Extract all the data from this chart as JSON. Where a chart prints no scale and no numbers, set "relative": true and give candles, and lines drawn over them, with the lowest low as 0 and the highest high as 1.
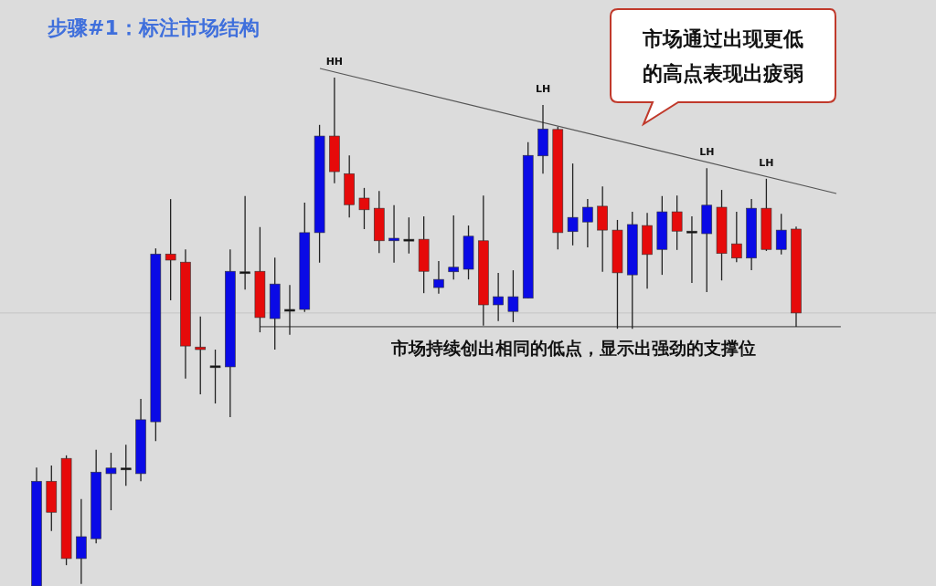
{
  "chart_data": {
    "type": "candlestick",
    "title": "步骤#1：标注市场结构",
    "relative": true,
    "categories": [
      null,
      null,
      null,
      null,
      null,
      null,
      null,
      null,
      null,
      null,
      null,
      null,
      null,
      null,
      null,
      null,
      null,
      null,
      null,
      null,
      null,
      null,
      null,
      null,
      null,
      null,
      null,
      null,
      null,
      null,
      null,
      null,
      null,
      null,
      null,
      null,
      null,
      null,
      null,
      null,
      null,
      null,
      null,
      null,
      null,
      null,
      null,
      null,
      null,
      null,
      null,
      null
    ],
    "ohlc": [
      [
        0,
        0.233,
        0,
        0.206
      ],
      [
        0.206,
        0.237,
        0.108,
        0.145
      ],
      [
        0.251,
        0.257,
        0.041,
        0.054
      ],
      [
        0.054,
        0.171,
        0.004,
        0.097
      ],
      [
        0.093,
        0.268,
        0.084,
        0.224
      ],
      [
        0.221,
        0.262,
        0.149,
        0.232
      ],
      [
        0.232,
        0.278,
        0.197,
        0.232
      ],
      [
        0.221,
        0.368,
        0.206,
        0.327
      ],
      [
        0.323,
        0.664,
        0.285,
        0.653
      ],
      [
        0.653,
        0.761,
        0.562,
        0.641
      ],
      [
        0.637,
        0.662,
        0.408,
        0.472
      ],
      [
        0.47,
        0.53,
        0.377,
        0.465
      ],
      [
        0.433,
        0.465,
        0.359,
        0.433
      ],
      [
        0.431,
        0.662,
        0.332,
        0.619
      ],
      [
        0.618,
        0.767,
        0.583,
        0.618
      ],
      [
        0.619,
        0.706,
        0.499,
        0.528
      ],
      [
        0.526,
        0.646,
        0.465,
        0.594
      ],
      [
        0.544,
        0.592,
        0.494,
        0.544
      ],
      [
        0.544,
        0.754,
        0.539,
        0.695
      ],
      [
        0.695,
        0.907,
        0.636,
        0.885
      ],
      [
        0.885,
        1,
        0.792,
        0.815
      ],
      [
        0.811,
        0.847,
        0.725,
        0.75
      ],
      [
        0.763,
        0.783,
        0.702,
        0.74
      ],
      [
        0.743,
        0.777,
        0.655,
        0.679
      ],
      [
        0.679,
        0.749,
        0.636,
        0.684
      ],
      [
        0.682,
        0.725,
        0.654,
        0.682
      ],
      [
        0.682,
        0.727,
        0.576,
        0.619
      ],
      [
        0.587,
        0.639,
        0.575,
        0.603
      ],
      [
        0.618,
        0.729,
        0.603,
        0.627
      ],
      [
        0.623,
        0.709,
        0.603,
        0.688
      ],
      [
        0.679,
        0.768,
        0.512,
        0.553
      ],
      [
        0.553,
        0.616,
        0.521,
        0.569
      ],
      [
        0.54,
        0.621,
        0.519,
        0.569
      ],
      [
        0.566,
        0.873,
        0.566,
        0.847
      ],
      [
        0.846,
        0.946,
        0.811,
        0.899
      ],
      [
        0.898,
        0.903,
        0.662,
        0.695
      ],
      [
        0.697,
        0.831,
        0.67,
        0.725
      ],
      [
        0.716,
        0.761,
        0.666,
        0.745
      ],
      [
        0.747,
        0.786,
        0.618,
        0.7
      ],
      [
        0.7,
        0.72,
        0.506,
        0.616
      ],
      [
        0.612,
        0.736,
        0.506,
        0.711
      ],
      [
        0.709,
        0.734,
        0.585,
        0.652
      ],
      [
        0.662,
        0.767,
        0.612,
        0.736
      ],
      [
        0.736,
        0.768,
        0.661,
        0.698
      ],
      [
        0.698,
        0.727,
        0.596,
        0.698
      ],
      [
        0.693,
        0.822,
        0.578,
        0.749
      ],
      [
        0.745,
        0.779,
        0.601,
        0.654
      ],
      [
        0.673,
        0.736,
        0.637,
        0.645
      ],
      [
        0.645,
        0.761,
        0.621,
        0.743
      ],
      [
        0.743,
        0.801,
        0.659,
        0.662
      ],
      [
        0.662,
        0.732,
        0.652,
        0.7
      ],
      [
        0.702,
        0.707,
        0.51,
        0.537
      ]
    ],
    "colors": [
      "#0a0ae6",
      "#e60a0a",
      "#e60a0a",
      "#0a0ae6",
      "#0a0ae6",
      "#0a0ae6",
      "#111111",
      "#0a0ae6",
      "#0a0ae6",
      "#e60a0a",
      "#e60a0a",
      "#e60a0a",
      "#111111",
      "#0a0ae6",
      "#111111",
      "#e60a0a",
      "#0a0ae6",
      "#111111",
      "#0a0ae6",
      "#0a0ae6",
      "#e60a0a",
      "#e60a0a",
      "#e60a0a",
      "#e60a0a",
      "#0a0ae6",
      "#111111",
      "#e60a0a",
      "#0a0ae6",
      "#0a0ae6",
      "#0a0ae6",
      "#e60a0a",
      "#0a0ae6",
      "#0a0ae6",
      "#0a0ae6",
      "#0a0ae6",
      "#e60a0a",
      "#0a0ae6",
      "#0a0ae6",
      "#e60a0a",
      "#e60a0a",
      "#0a0ae6",
      "#e60a0a",
      "#0a0ae6",
      "#e60a0a",
      "#111111",
      "#0a0ae6",
      "#e60a0a",
      "#e60a0a",
      "#0a0ae6",
      "#e60a0a",
      "#0a0ae6",
      "#e60a0a"
    ],
    "ref_lines": [
      {
        "axis": "y",
        "value": 0.537,
        "color": "#c4c4c4"
      },
      {
        "axis": "y",
        "value": 0.51,
        "color": "#333333"
      }
    ],
    "annotations": [
      "市场通过出现更低的高点表现出疲弱",
      "市场持续创出相同的低点，显示出强劲的支撑位",
      {
        "text": "HH",
        "y": 1
      },
      {
        "text": "LH",
        "y": 0.946
      },
      {
        "text": "LH",
        "y": 0.822
      },
      {
        "text": "LH",
        "y": 0.801
      }
    ]
  }
}
